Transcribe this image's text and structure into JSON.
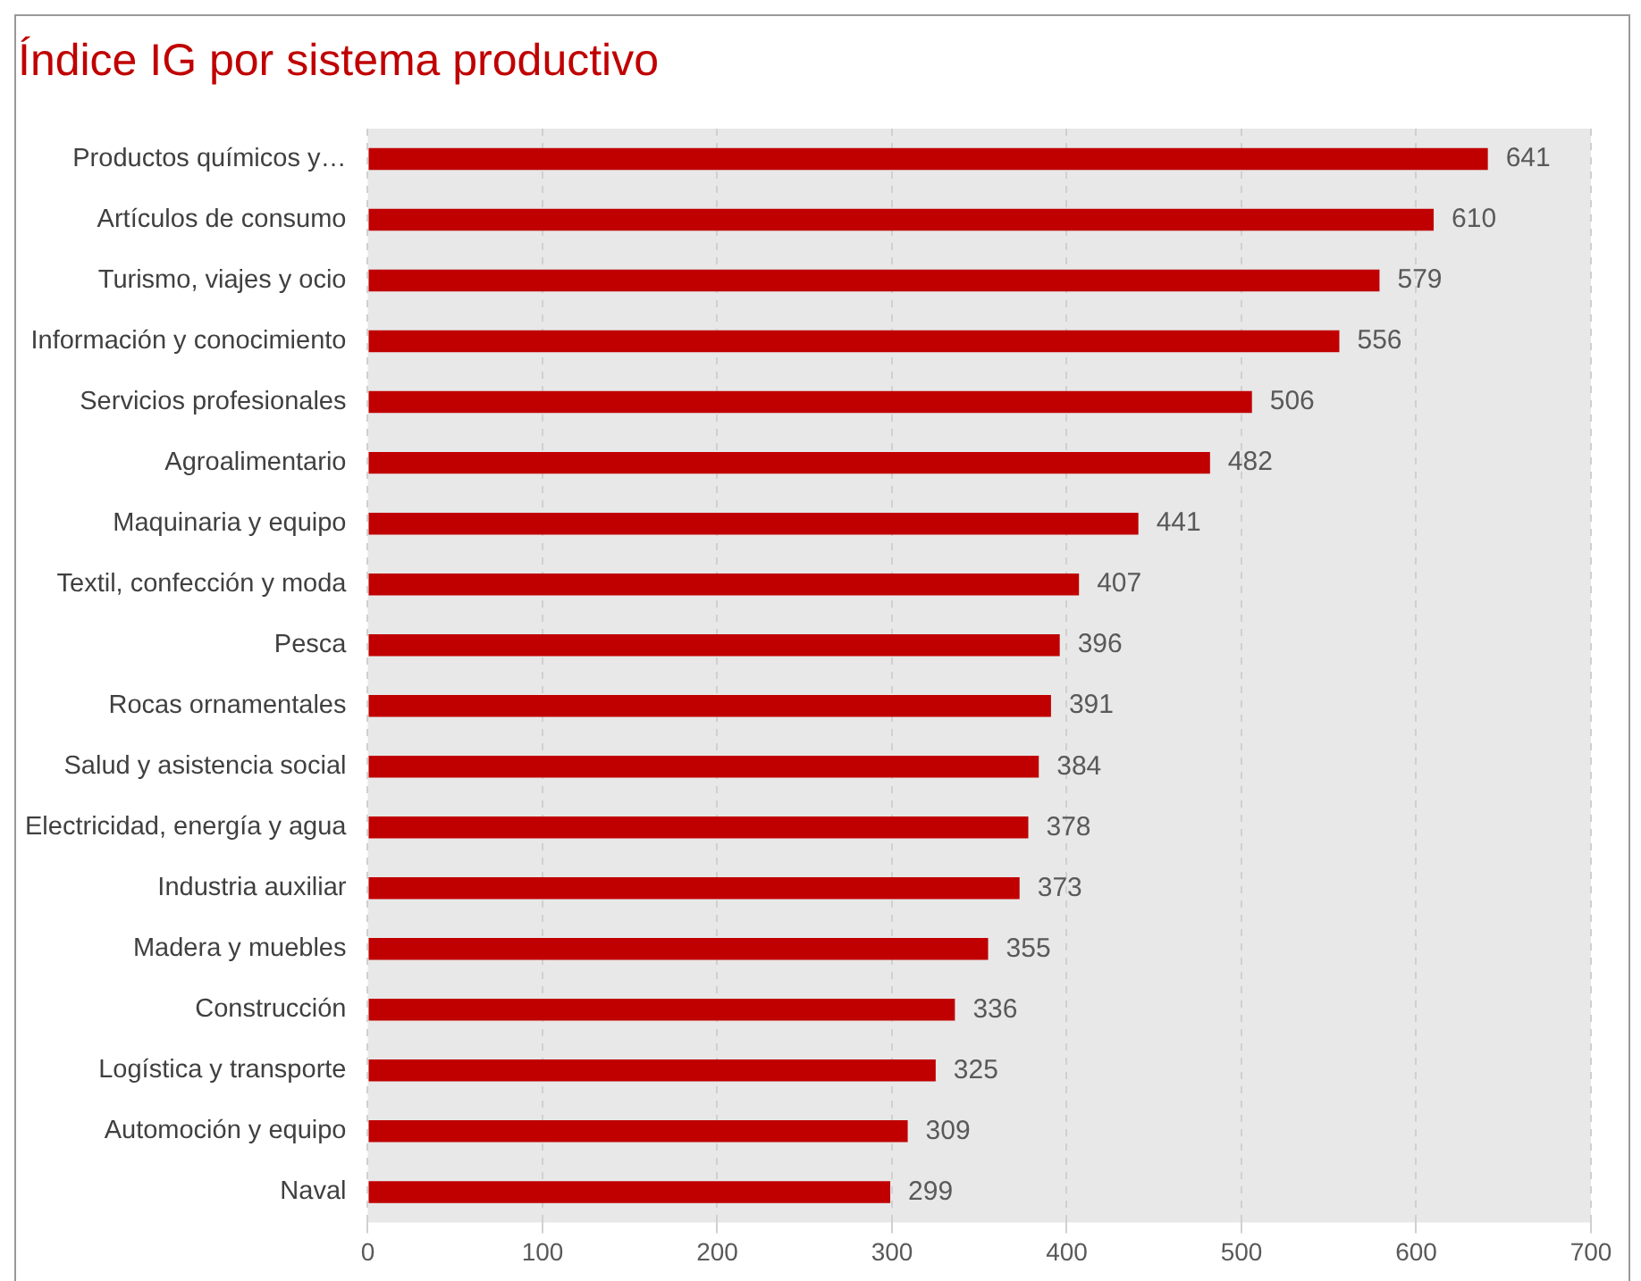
{
  "chart_data": {
    "type": "bar",
    "orientation": "horizontal",
    "title": "Índice IG por sistema productivo",
    "categories": [
      "Productos químicos y…",
      "Artículos de consumo",
      "Turismo, viajes y ocio",
      "Información y conocimiento",
      "Servicios profesionales",
      "Agroalimentario",
      "Maquinaria y equipo",
      "Textil, confección y moda",
      "Pesca",
      "Rocas ornamentales",
      "Salud y asistencia social",
      "Electricidad, energía y agua",
      "Industria auxiliar",
      "Madera y muebles",
      "Construcción",
      "Logística y transporte",
      "Automoción y equipo",
      "Naval"
    ],
    "values": [
      641,
      610,
      579,
      556,
      506,
      482,
      441,
      407,
      396,
      391,
      384,
      378,
      373,
      355,
      336,
      325,
      309,
      299
    ],
    "color": "#c00000",
    "xlim": [
      0,
      700
    ],
    "xticks": [
      0,
      100,
      200,
      300,
      400,
      500,
      600,
      700
    ],
    "grid": "x",
    "data_labels": true,
    "legend": false
  }
}
